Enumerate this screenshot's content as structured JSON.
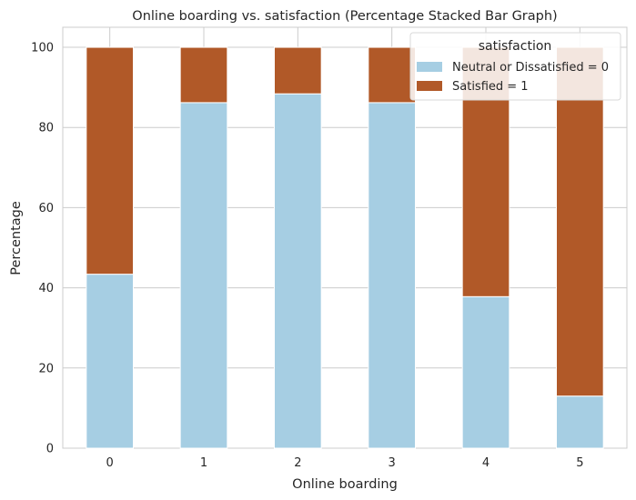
{
  "chart_data": {
    "type": "bar",
    "stacked": true,
    "title": "Online boarding vs. satisfaction (Percentage Stacked Bar Graph)",
    "xlabel": "Online boarding",
    "ylabel": "Percentage",
    "categories": [
      "0",
      "1",
      "2",
      "3",
      "4",
      "5"
    ],
    "ylim": [
      0,
      105
    ],
    "yticks": [
      0,
      20,
      40,
      60,
      80,
      100
    ],
    "grid": true,
    "legend": {
      "title": "satisfaction",
      "placement": "top-right"
    },
    "series": [
      {
        "name": "Neutral or Dissatisfied = 0",
        "color": "#a6cee3",
        "values": [
          43.4,
          86.2,
          88.4,
          86.2,
          37.8,
          13.0
        ]
      },
      {
        "name": "Satisfied = 1",
        "color": "#b15928",
        "values": [
          56.6,
          13.8,
          11.6,
          13.8,
          62.2,
          87.0
        ]
      }
    ]
  }
}
